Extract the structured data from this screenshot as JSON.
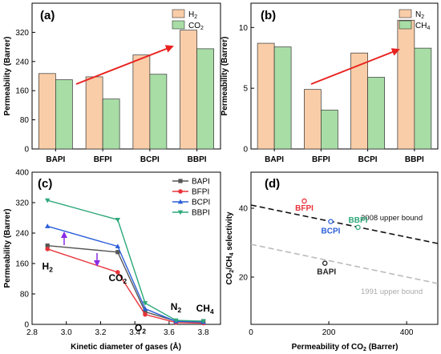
{
  "chart_data": [
    {
      "panel": "(a)",
      "type": "bar",
      "categories": [
        "BAPI",
        "BFPI",
        "BCPI",
        "BBPI"
      ],
      "series": [
        {
          "name": "H2",
          "values": [
            207,
            198,
            258,
            326
          ],
          "color": "#F9CDA8"
        },
        {
          "name": "CO2",
          "values": [
            190,
            137,
            205,
            275
          ],
          "color": "#A8DDA6"
        }
      ],
      "xlabel": "",
      "ylabel": "Permeability (Barrer)",
      "ylim": [
        0,
        400
      ],
      "yticks": [
        "0",
        "80",
        "160",
        "240",
        "320"
      ],
      "legend": "top-right",
      "annotation": "red increasing arrow"
    },
    {
      "panel": "(b)",
      "type": "bar",
      "categories": [
        "BAPI",
        "BFPI",
        "BCPI",
        "BBPI"
      ],
      "series": [
        {
          "name": "N2",
          "values": [
            8.7,
            4.9,
            7.9,
            10.6
          ],
          "color": "#F9CDA8"
        },
        {
          "name": "CH4",
          "values": [
            8.4,
            3.2,
            5.9,
            8.3
          ],
          "color": "#A8DDA6"
        }
      ],
      "xlabel": "",
      "ylabel": "Permeability (Barrer)",
      "ylim": [
        0,
        12
      ],
      "yticks": [
        "0",
        "5",
        "10"
      ],
      "legend": "top-right",
      "annotation": "red increasing arrow"
    },
    {
      "panel": "(c)",
      "type": "line",
      "xlabel": "Kinetic diameter of gases (Å)",
      "ylabel": "Permeability (Barrer)",
      "xlim": [
        2.8,
        3.9
      ],
      "ylim": [
        0,
        400
      ],
      "xticks": [
        "2.8",
        "3.0",
        "3.2",
        "3.4",
        "3.6",
        "3.8"
      ],
      "yticks": [
        "0",
        "80",
        "160",
        "240",
        "320",
        "400"
      ],
      "x": [
        2.89,
        3.3,
        3.46,
        3.64,
        3.8
      ],
      "series": [
        {
          "name": "BAPI",
          "values": [
            207,
            190,
            33,
            8.7,
            8.4
          ],
          "color": "#555555"
        },
        {
          "name": "BFPI",
          "values": [
            198,
            137,
            26,
            4.9,
            3.2
          ],
          "color": "#E8333A"
        },
        {
          "name": "BCPI",
          "values": [
            258,
            205,
            41,
            7.9,
            5.9
          ],
          "color": "#2B5FD9"
        },
        {
          "name": "BBPI",
          "values": [
            326,
            275,
            56,
            10.6,
            8.3
          ],
          "color": "#2EA87A"
        }
      ],
      "gas_labels": [
        "H2",
        "CO2",
        "O2",
        "N2",
        "CH4"
      ],
      "legend": "top-right"
    },
    {
      "panel": "(d)",
      "type": "scatter",
      "xlabel": "Permeability of CO2 (Barrer)",
      "ylabel": "CO2/CH4 selectivity",
      "xlim": [
        0,
        480
      ],
      "xticks": [
        "0",
        "200",
        "400"
      ],
      "yticks": [
        "20",
        "40"
      ],
      "points": [
        {
          "name": "BAPI",
          "x": 190,
          "y": 23,
          "color": "#222222"
        },
        {
          "name": "BFPI",
          "x": 137,
          "y": 43,
          "color": "#E8333A"
        },
        {
          "name": "BCPI",
          "x": 205,
          "y": 35,
          "color": "#2B5FD9"
        },
        {
          "name": "BBPI",
          "x": 275,
          "y": 33,
          "color": "#2EA87A"
        }
      ],
      "bounds": [
        {
          "name": "2008 upper bound",
          "color": "#111111"
        },
        {
          "name": "1991 upper bound",
          "color": "#BBBBBB"
        }
      ]
    }
  ]
}
